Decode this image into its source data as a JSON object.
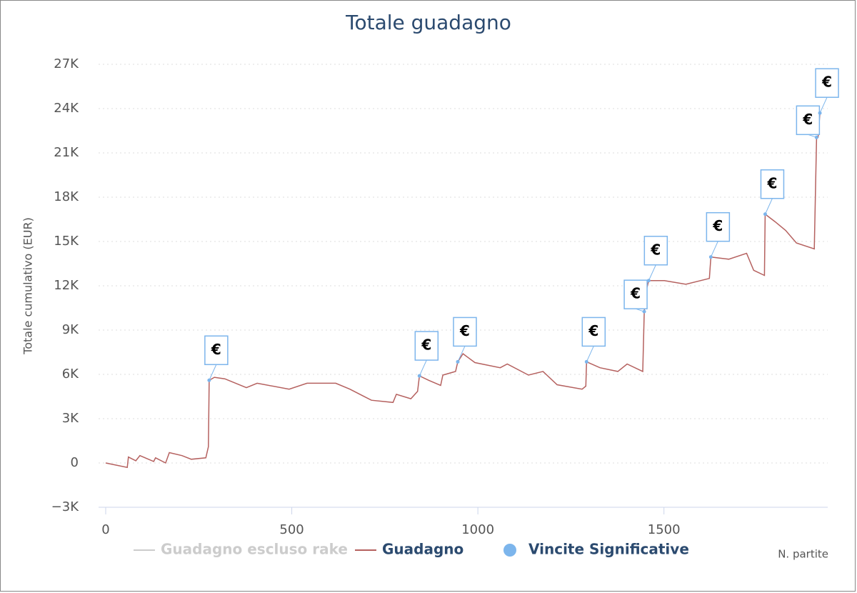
{
  "chart_data": {
    "type": "line",
    "title": "Totale guadagno",
    "ylabel": "Totale cumulativo (EUR)",
    "xlabel": "N. partite",
    "xlim": [
      0,
      1940
    ],
    "xticks": [
      0,
      500,
      1000,
      1500
    ],
    "ylim": [
      -3000,
      27000
    ],
    "yticks": [
      {
        "value": -3000,
        "label": "−3K"
      },
      0,
      {
        "value": 3000,
        "label": "3K"
      },
      {
        "value": 6000,
        "label": "6K"
      },
      {
        "value": 9000,
        "label": "9K"
      },
      {
        "value": 12000,
        "label": "12K"
      },
      {
        "value": 15000,
        "label": "15K"
      },
      {
        "value": 18000,
        "label": "18K"
      },
      {
        "value": 21000,
        "label": "21K"
      },
      {
        "value": 24000,
        "label": "24K"
      },
      {
        "value": 27000,
        "label": "27K"
      }
    ],
    "grid": true,
    "series": [
      {
        "name": "Guadagno escluso rake",
        "color": "#cccccc",
        "visible": false
      },
      {
        "name": "Guadagno",
        "color": "#b5615f",
        "visible": true,
        "x": [
          0,
          58,
          61,
          81,
          92,
          129,
          134,
          161,
          171,
          205,
          230,
          269,
          276,
          278,
          292,
          320,
          378,
          407,
          493,
          541,
          618,
          656,
          714,
          772,
          781,
          820,
          838,
          843,
          868,
          900,
          906,
          940,
          946,
          960,
          973,
          992,
          1060,
          1079,
          1136,
          1175,
          1213,
          1280,
          1290,
          1292,
          1328,
          1376,
          1401,
          1443,
          1447,
          1453,
          1459,
          1501,
          1559,
          1622,
          1626,
          1674,
          1722,
          1741,
          1770,
          1772,
          1798,
          1827,
          1856,
          1904,
          1910,
          1914,
          1919
        ],
        "values": [
          0,
          -300,
          400,
          150,
          500,
          100,
          350,
          0,
          700,
          500,
          250,
          350,
          1100,
          5600,
          5800,
          5700,
          5100,
          5400,
          5000,
          5400,
          5400,
          5000,
          4250,
          4100,
          4650,
          4350,
          4850,
          5900,
          5600,
          5250,
          5950,
          6200,
          6850,
          7400,
          7150,
          6800,
          6450,
          6700,
          5950,
          6200,
          5300,
          5000,
          5200,
          6850,
          6450,
          6200,
          6700,
          6200,
          10250,
          11750,
          12350,
          12350,
          12100,
          12500,
          13950,
          13800,
          14200,
          13050,
          12700,
          16850,
          16350,
          15750,
          14900,
          14500,
          22050,
          22050,
          23700
        ]
      },
      {
        "name": "Vincite Significative",
        "color": "#7cb5ec",
        "visible": true,
        "x": [
          278,
          843,
          946,
          1292,
          1447,
          1459,
          1626,
          1772,
          1910,
          1919
        ],
        "values": [
          5600,
          5900,
          6850,
          6850,
          10250,
          12350,
          13950,
          16850,
          22050,
          23700
        ],
        "labels": [
          "€",
          "€",
          "€",
          "€",
          "€",
          "€",
          "€",
          "€",
          "€",
          "€"
        ]
      }
    ]
  }
}
